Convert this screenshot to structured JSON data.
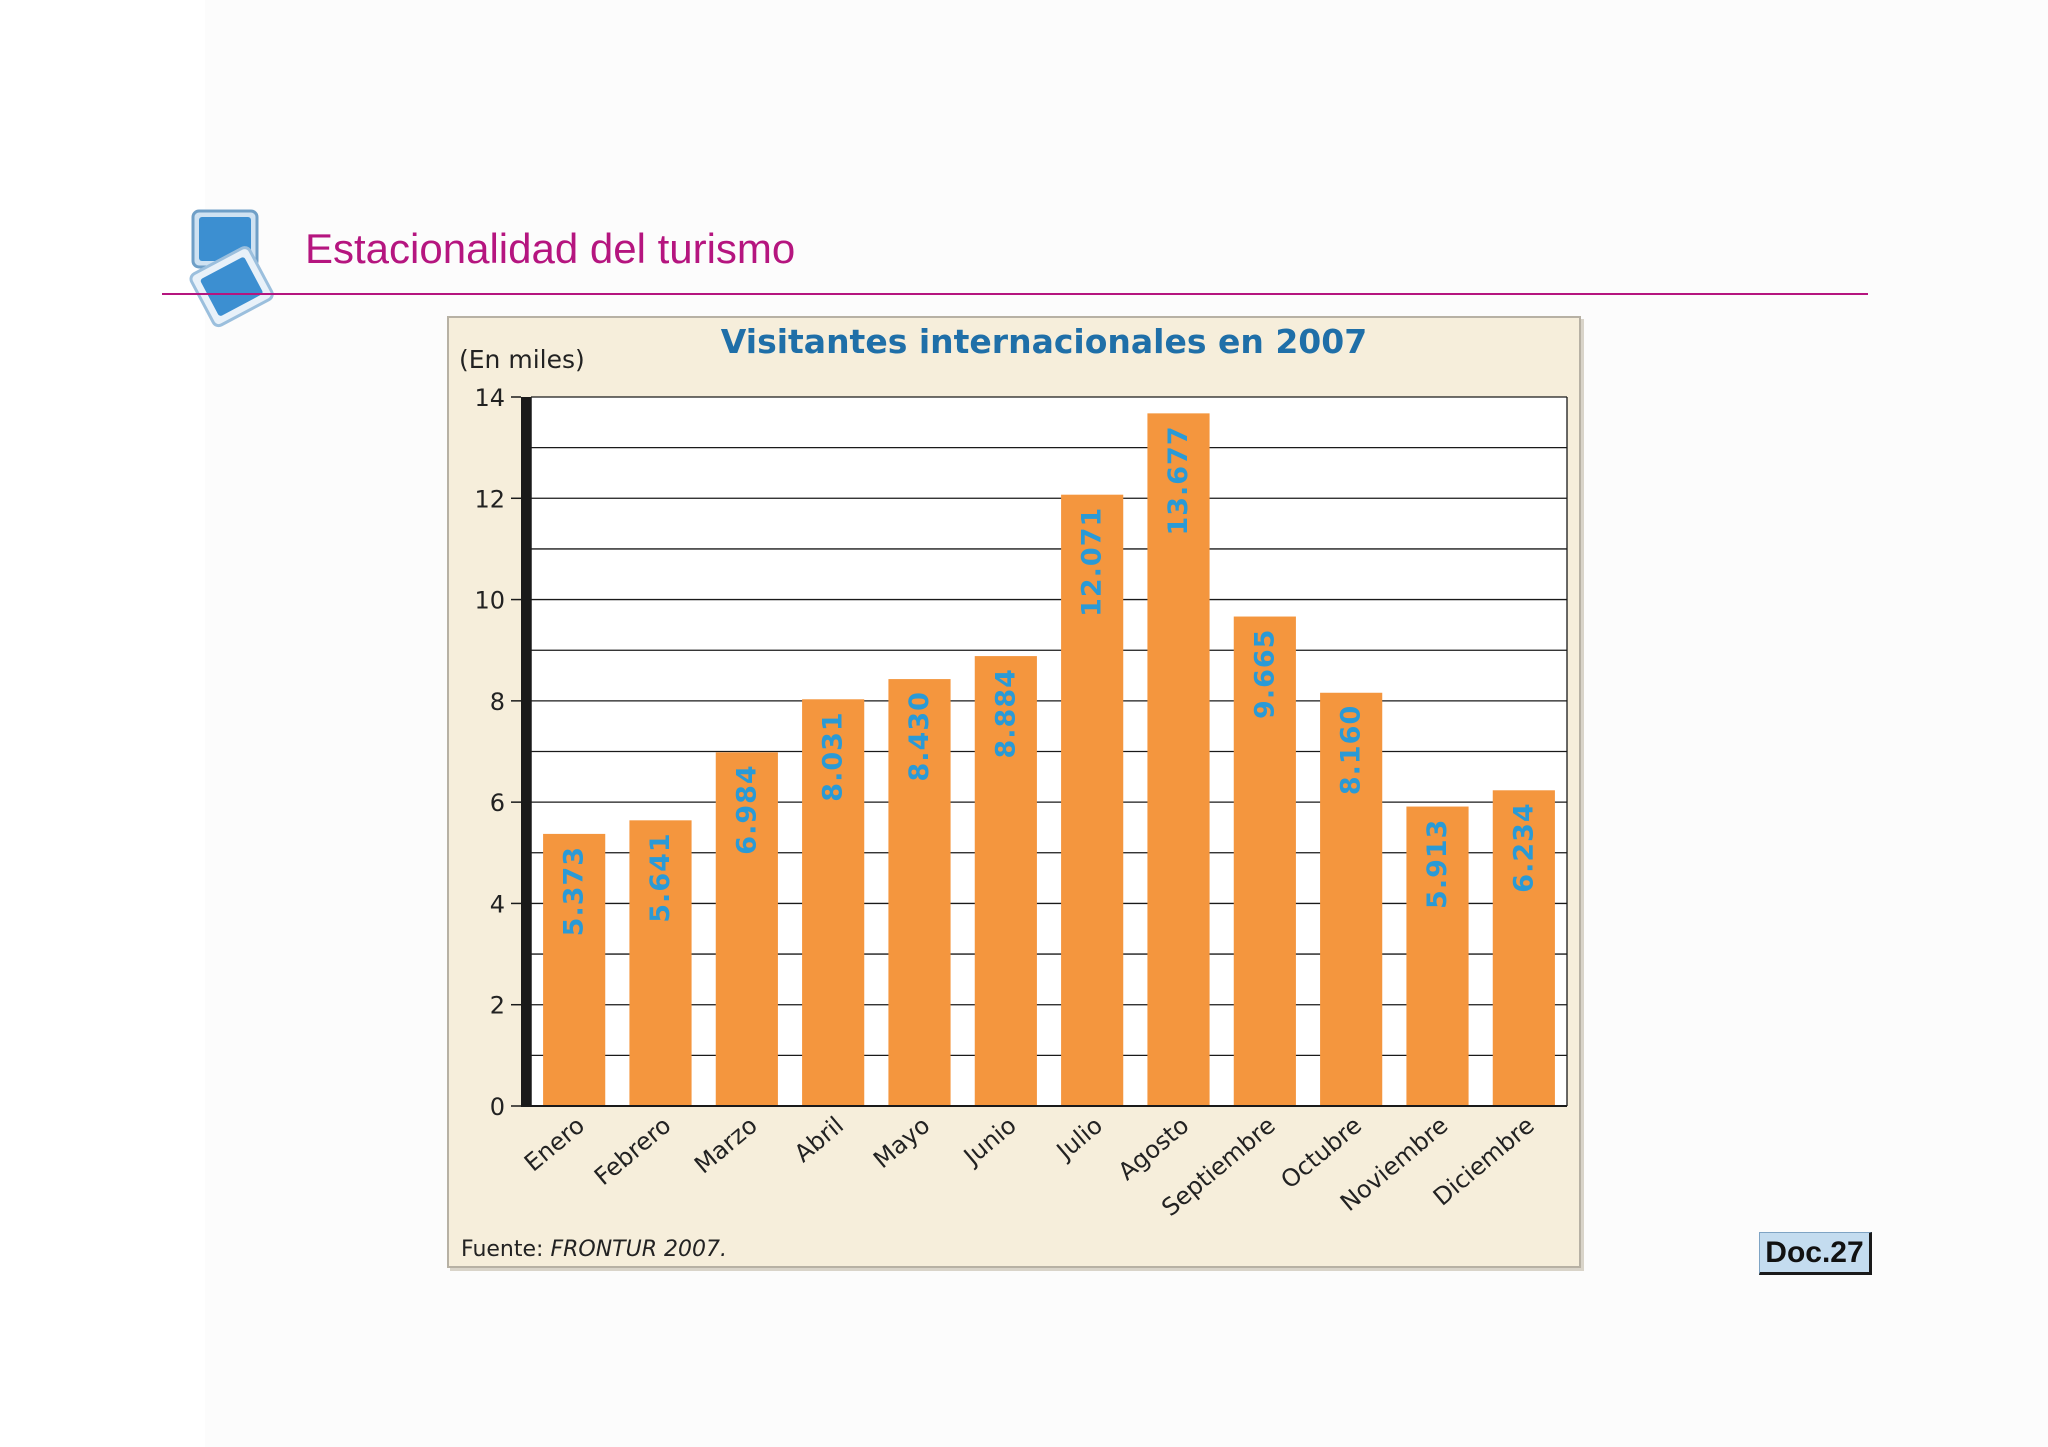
{
  "slide": {
    "title": "Estacionalidad del turismo",
    "doc_label": "Doc.27",
    "title_color": "#b5157f",
    "logo_icon": "overlapping-squares-icon"
  },
  "chart_data": {
    "type": "bar",
    "title": "Visitantes internacionales en 2007",
    "unit_label": "(En miles)",
    "source_prefix": "Fuente: ",
    "source_name": "FRONTUR 2007.",
    "categories": [
      "Enero",
      "Febrero",
      "Marzo",
      "Abril",
      "Mayo",
      "Junio",
      "Julio",
      "Agosto",
      "Septiembre",
      "Octubre",
      "Noviembre",
      "Diciembre"
    ],
    "values": [
      5.373,
      5.641,
      6.984,
      8.031,
      8.43,
      8.884,
      12.071,
      13.677,
      9.665,
      8.16,
      5.913,
      6.234
    ],
    "value_labels": [
      "5.373",
      "5.641",
      "6.984",
      "8.031",
      "8.430",
      "8.884",
      "12.071",
      "13.677",
      "9.665",
      "8.160",
      "5.913",
      "6.234"
    ],
    "ylim": [
      0,
      14
    ],
    "yticks": [
      0,
      2,
      4,
      6,
      8,
      10,
      12,
      14
    ],
    "grid_step": 1,
    "grid": true,
    "colors": {
      "bar": "#f4963e",
      "value_label": "#2a9ad6",
      "title": "#1f6fa8",
      "panel": "#f6eedb",
      "plot": "#ffffff"
    }
  }
}
